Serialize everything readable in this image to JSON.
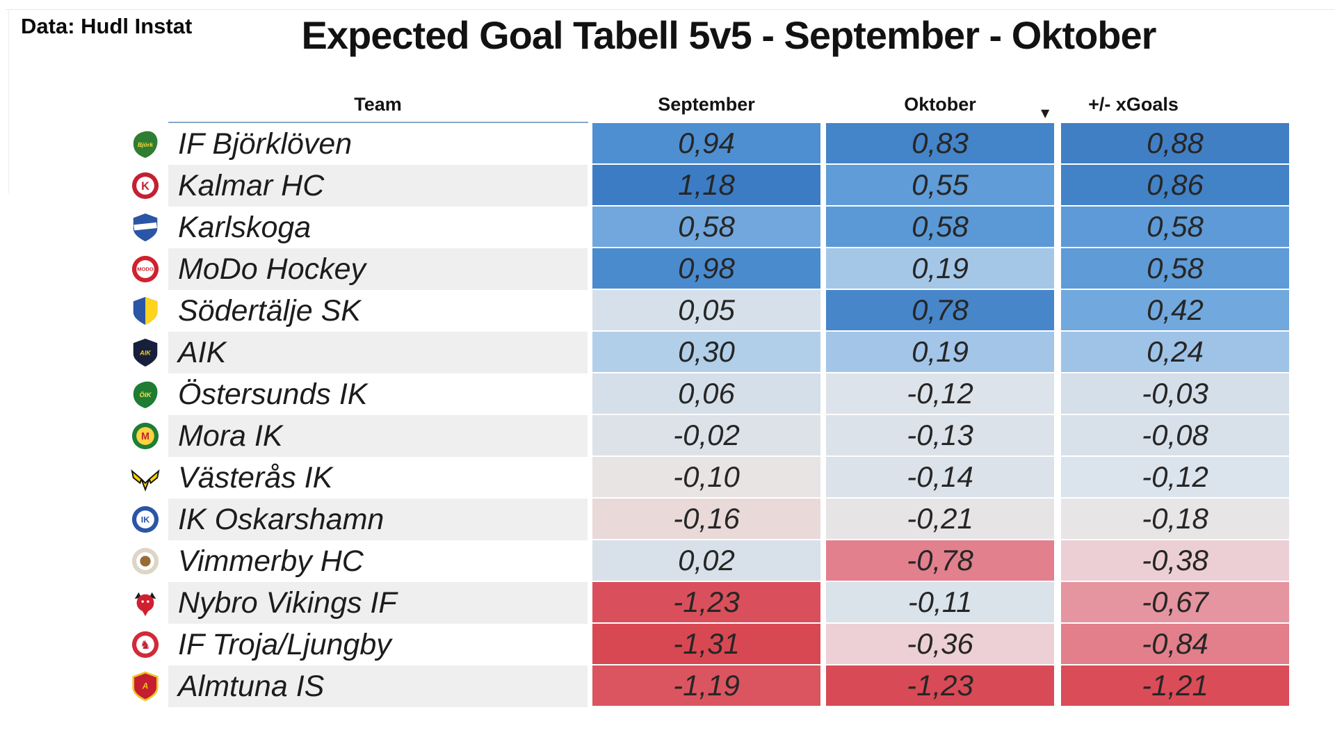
{
  "annotation": {
    "source_label": "Data: Hudl Instat"
  },
  "header": {
    "title": "Expected Goal Tabell 5v5 - September - Oktober"
  },
  "table": {
    "columns": [
      "Team",
      "September",
      "Oktober",
      "+/- xGoals"
    ],
    "sort": {
      "column": "+/- xGoals",
      "direction": "descending",
      "icon_glyph": "▼"
    },
    "stripe_color": "#efefef",
    "header_underline_color": "#84a7c9",
    "rows": [
      {
        "team": "IF Björklöven",
        "values": {
          "september": "0,94",
          "oktober": "0,83",
          "xgoals": "0,88"
        },
        "colors": {
          "september": "#4e8fd1",
          "oktober": "#4484c8",
          "xgoals": "#417fc4"
        },
        "logo": {
          "name": "bjorkloven-crest-icon",
          "shape": "leaf",
          "c1": "#2f7d32",
          "c2": "#ffd93b",
          "glyph": "Björk",
          "fs": 9
        }
      },
      {
        "team": "Kalmar HC",
        "values": {
          "september": "1,18",
          "oktober": "0,55",
          "xgoals": "0,86"
        },
        "colors": {
          "september": "#3c7cc4",
          "oktober": "#5f9cd8",
          "xgoals": "#4282c6"
        },
        "logo": {
          "name": "kalmar-crest-icon",
          "shape": "ring",
          "c1": "#c32032",
          "c2": "#ffffff",
          "c3": "#c32032",
          "glyph": "K",
          "fs": 17
        }
      },
      {
        "team": "Karlskoga",
        "values": {
          "september": "0,58",
          "oktober": "0,58",
          "xgoals": "0,58"
        },
        "colors": {
          "september": "#71a7dd",
          "oktober": "#5b99d6",
          "xgoals": "#5d9ad7"
        },
        "logo": {
          "name": "karlskoga-crest-icon",
          "shape": "shield",
          "c1": "#2b55a5",
          "band": "#ffffff"
        }
      },
      {
        "team": "MoDo Hockey",
        "values": {
          "september": "0,98",
          "oktober": "0,19",
          "xgoals": "0,58"
        },
        "colors": {
          "september": "#4a8bce",
          "oktober": "#a4c7e8",
          "xgoals": "#5e9bd7"
        },
        "logo": {
          "name": "modo-crest-icon",
          "shape": "ring",
          "c1": "#d0212e",
          "c2": "#ffffff",
          "c3": "#d0212e",
          "glyph": "MODO",
          "fs": 8
        }
      },
      {
        "team": "Södertälje SK",
        "values": {
          "september": "0,05",
          "oktober": "0,78",
          "xgoals": "0,42"
        },
        "colors": {
          "september": "#d6e0ea",
          "oktober": "#4886ca",
          "xgoals": "#71a9de"
        },
        "logo": {
          "name": "sodertalje-crest-icon",
          "shape": "shield",
          "c1": "#2b55a5",
          "half": "#ffd31e"
        }
      },
      {
        "team": "AIK",
        "values": {
          "september": "0,30",
          "oktober": "0,19",
          "xgoals": "0,24"
        },
        "colors": {
          "september": "#b1cfe9",
          "oktober": "#a2c5e8",
          "xgoals": "#9ec3e7"
        },
        "logo": {
          "name": "aik-crest-icon",
          "shape": "shield",
          "c1": "#16203c",
          "gc": "#f7d117",
          "glyph": "AIK",
          "fs": 10
        }
      },
      {
        "team": "Östersunds IK",
        "values": {
          "september": "0,06",
          "oktober": "-0,12",
          "xgoals": "-0,03"
        },
        "colors": {
          "september": "#d5dfe9",
          "oktober": "#dde3ea",
          "xgoals": "#d5dfe9"
        },
        "logo": {
          "name": "ostersund-crest-icon",
          "shape": "leaf",
          "c1": "#1e7c33",
          "c2": "#ffe03d",
          "glyph": "ÖIK",
          "fs": 10
        }
      },
      {
        "team": "Mora IK",
        "values": {
          "september": "-0,02",
          "oktober": "-0,13",
          "xgoals": "-0,08"
        },
        "colors": {
          "september": "#dde2e8",
          "oktober": "#dce2e9",
          "xgoals": "#d8e1ea"
        },
        "logo": {
          "name": "mora-crest-icon",
          "shape": "ring",
          "c1": "#1e7d36",
          "c2": "#ffd23f",
          "c3": "#c42330",
          "glyph": "M",
          "fs": 15
        }
      },
      {
        "team": "Västerås IK",
        "values": {
          "september": "-0,10",
          "oktober": "-0,14",
          "xgoals": "-0,12"
        },
        "colors": {
          "september": "#e7e4e3",
          "oktober": "#dbe2e9",
          "xgoals": "#dbe3ec"
        },
        "logo": {
          "name": "vasteras-crest-icon",
          "shape": "wings",
          "c1": "#ffd400"
        }
      },
      {
        "team": "IK Oskarshamn",
        "values": {
          "september": "-0,16",
          "oktober": "-0,21",
          "xgoals": "-0,18"
        },
        "colors": {
          "september": "#ead9d9",
          "oktober": "#e6e4e5",
          "xgoals": "#e7e5e6"
        },
        "logo": {
          "name": "oskarshamn-crest-icon",
          "shape": "ring",
          "c1": "#2b55a5",
          "c2": "#ffffff",
          "c3": "#2b55a5",
          "glyph": "IK",
          "fs": 13
        }
      },
      {
        "team": "Vimmerby HC",
        "values": {
          "september": "0,02",
          "oktober": "-0,78",
          "xgoals": "-0,38"
        },
        "colors": {
          "september": "#d8e1ea",
          "oktober": "#e2808d",
          "xgoals": "#eccfd4"
        },
        "logo": {
          "name": "vimmerby-crest-icon",
          "shape": "ring",
          "c1": "#ddd5c6",
          "c2": "#ffffff",
          "dot": "#9a6a33"
        }
      },
      {
        "team": "Nybro Vikings IF",
        "values": {
          "september": "-1,23",
          "oktober": "-0,11",
          "xgoals": "-0,67"
        },
        "colors": {
          "september": "#d9505c",
          "oktober": "#dae2ea",
          "xgoals": "#e595a0"
        },
        "logo": {
          "name": "nybro-crest-icon",
          "shape": "viking",
          "c1": "#d02030"
        }
      },
      {
        "team": "IF Troja/Ljungby",
        "values": {
          "september": "-1,31",
          "oktober": "-0,36",
          "xgoals": "-0,84"
        },
        "colors": {
          "september": "#d84853",
          "oktober": "#ecd0d5",
          "xgoals": "#e27f8b"
        },
        "logo": {
          "name": "troja-crest-icon",
          "shape": "ring",
          "c1": "#d22a38",
          "c2": "#ffffff",
          "c3": "#c32032",
          "glyph": "♞",
          "fs": 18
        }
      },
      {
        "team": "Almtuna IS",
        "values": {
          "september": "-1,19",
          "oktober": "-1,23",
          "xgoals": "-1,21"
        },
        "colors": {
          "september": "#da5560",
          "oktober": "#d84a56",
          "xgoals": "#d94c58"
        },
        "logo": {
          "name": "almtuna-crest-icon",
          "shape": "shield",
          "c1": "#c41e2f",
          "stroke": "#f2c428",
          "gc": "#f2c428",
          "glyph": "A",
          "fs": 13
        }
      }
    ]
  },
  "chart_data": {
    "type": "table",
    "title": "Expected Goal Tabell 5v5 - September - Oktober",
    "source": "Data: Hudl Instat",
    "columns": [
      "Team",
      "September",
      "Oktober",
      "+/- xGoals"
    ],
    "teams": [
      "IF Björklöven",
      "Kalmar HC",
      "Karlskoga",
      "MoDo Hockey",
      "Södertälje SK",
      "AIK",
      "Östersunds IK",
      "Mora IK",
      "Västerås IK",
      "IK Oskarshamn",
      "Vimmerby HC",
      "Nybro Vikings IF",
      "IF Troja/Ljungby",
      "Almtuna IS"
    ],
    "series": [
      {
        "name": "September",
        "values": [
          0.94,
          1.18,
          0.58,
          0.98,
          0.05,
          0.3,
          0.06,
          -0.02,
          -0.1,
          -0.16,
          0.02,
          -1.23,
          -1.31,
          -1.19
        ]
      },
      {
        "name": "Oktober",
        "values": [
          0.83,
          0.55,
          0.58,
          0.19,
          0.78,
          0.19,
          -0.12,
          -0.13,
          -0.14,
          -0.21,
          -0.78,
          -0.11,
          -0.36,
          -1.23
        ]
      },
      {
        "name": "+/- xGoals",
        "values": [
          0.88,
          0.86,
          0.58,
          0.58,
          0.42,
          0.24,
          -0.03,
          -0.08,
          -0.12,
          -0.18,
          -0.38,
          -0.67,
          -0.84,
          -1.21
        ]
      }
    ],
    "value_format": "comma-decimal",
    "sorted_by": "+/- xGoals descending",
    "color_scale": {
      "type": "diverging",
      "negative": "#d84853",
      "center": "#e8e6e6",
      "positive": "#3c7cc4",
      "applied": "per-column min-mid-max"
    },
    "legend_position": "none",
    "grid": false
  }
}
